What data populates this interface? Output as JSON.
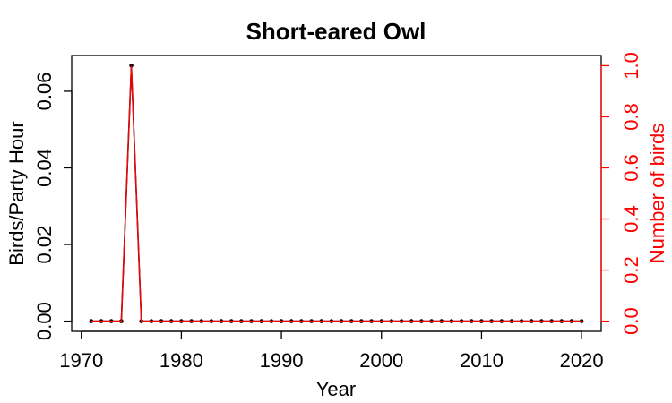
{
  "chart_data": {
    "type": "line",
    "title": "Short-eared Owl",
    "xlabel": "Year",
    "ylabel": "Birds/Party Hour",
    "y2label": "Number of birds",
    "xlim": [
      1969.04,
      2021.96
    ],
    "ylim": [
      -0.002667,
      0.069333
    ],
    "y2lim": [
      -0.04,
      1.04
    ],
    "xticks": [
      "1970",
      "1980",
      "1990",
      "2000",
      "2010",
      "2020"
    ],
    "yticks": [
      "0.00",
      "0.02",
      "0.04",
      "0.06"
    ],
    "y2ticks": [
      "0.0",
      "0.2",
      "0.4",
      "0.6",
      "0.8",
      "1.0"
    ],
    "x": [
      1971,
      1972,
      1973,
      1974,
      1975,
      1976,
      1977,
      1978,
      1979,
      1980,
      1981,
      1982,
      1983,
      1984,
      1985,
      1986,
      1987,
      1988,
      1989,
      1990,
      1991,
      1992,
      1993,
      1994,
      1995,
      1996,
      1997,
      1998,
      1999,
      2000,
      2001,
      2002,
      2003,
      2004,
      2005,
      2006,
      2007,
      2008,
      2009,
      2010,
      2011,
      2012,
      2013,
      2014,
      2015,
      2016,
      2017,
      2018,
      2019,
      2020
    ],
    "series": [
      {
        "axis": "left",
        "color": "#000000",
        "values": [
          0,
          0,
          0,
          0,
          0.0667,
          0,
          0,
          0,
          0,
          0,
          0,
          0,
          0,
          0,
          0,
          0,
          0,
          0,
          0,
          0,
          0,
          0,
          0,
          0,
          0,
          0,
          0,
          0,
          0,
          0,
          0,
          0,
          0,
          0,
          0,
          0,
          0,
          0,
          0,
          0,
          0,
          0,
          0,
          0,
          0,
          0,
          0,
          0,
          0,
          0
        ]
      },
      {
        "axis": "right",
        "color": "#ff0000",
        "values": [
          0,
          0,
          0,
          0,
          1,
          0,
          0,
          0,
          0,
          0,
          0,
          0,
          0,
          0,
          0,
          0,
          0,
          0,
          0,
          0,
          0,
          0,
          0,
          0,
          0,
          0,
          0,
          0,
          0,
          0,
          0,
          0,
          0,
          0,
          0,
          0,
          0,
          0,
          0,
          0,
          0,
          0,
          0,
          0,
          0,
          0,
          0,
          0,
          0,
          0
        ]
      }
    ],
    "grid": false,
    "right_axis_color": "#ff0000"
  }
}
